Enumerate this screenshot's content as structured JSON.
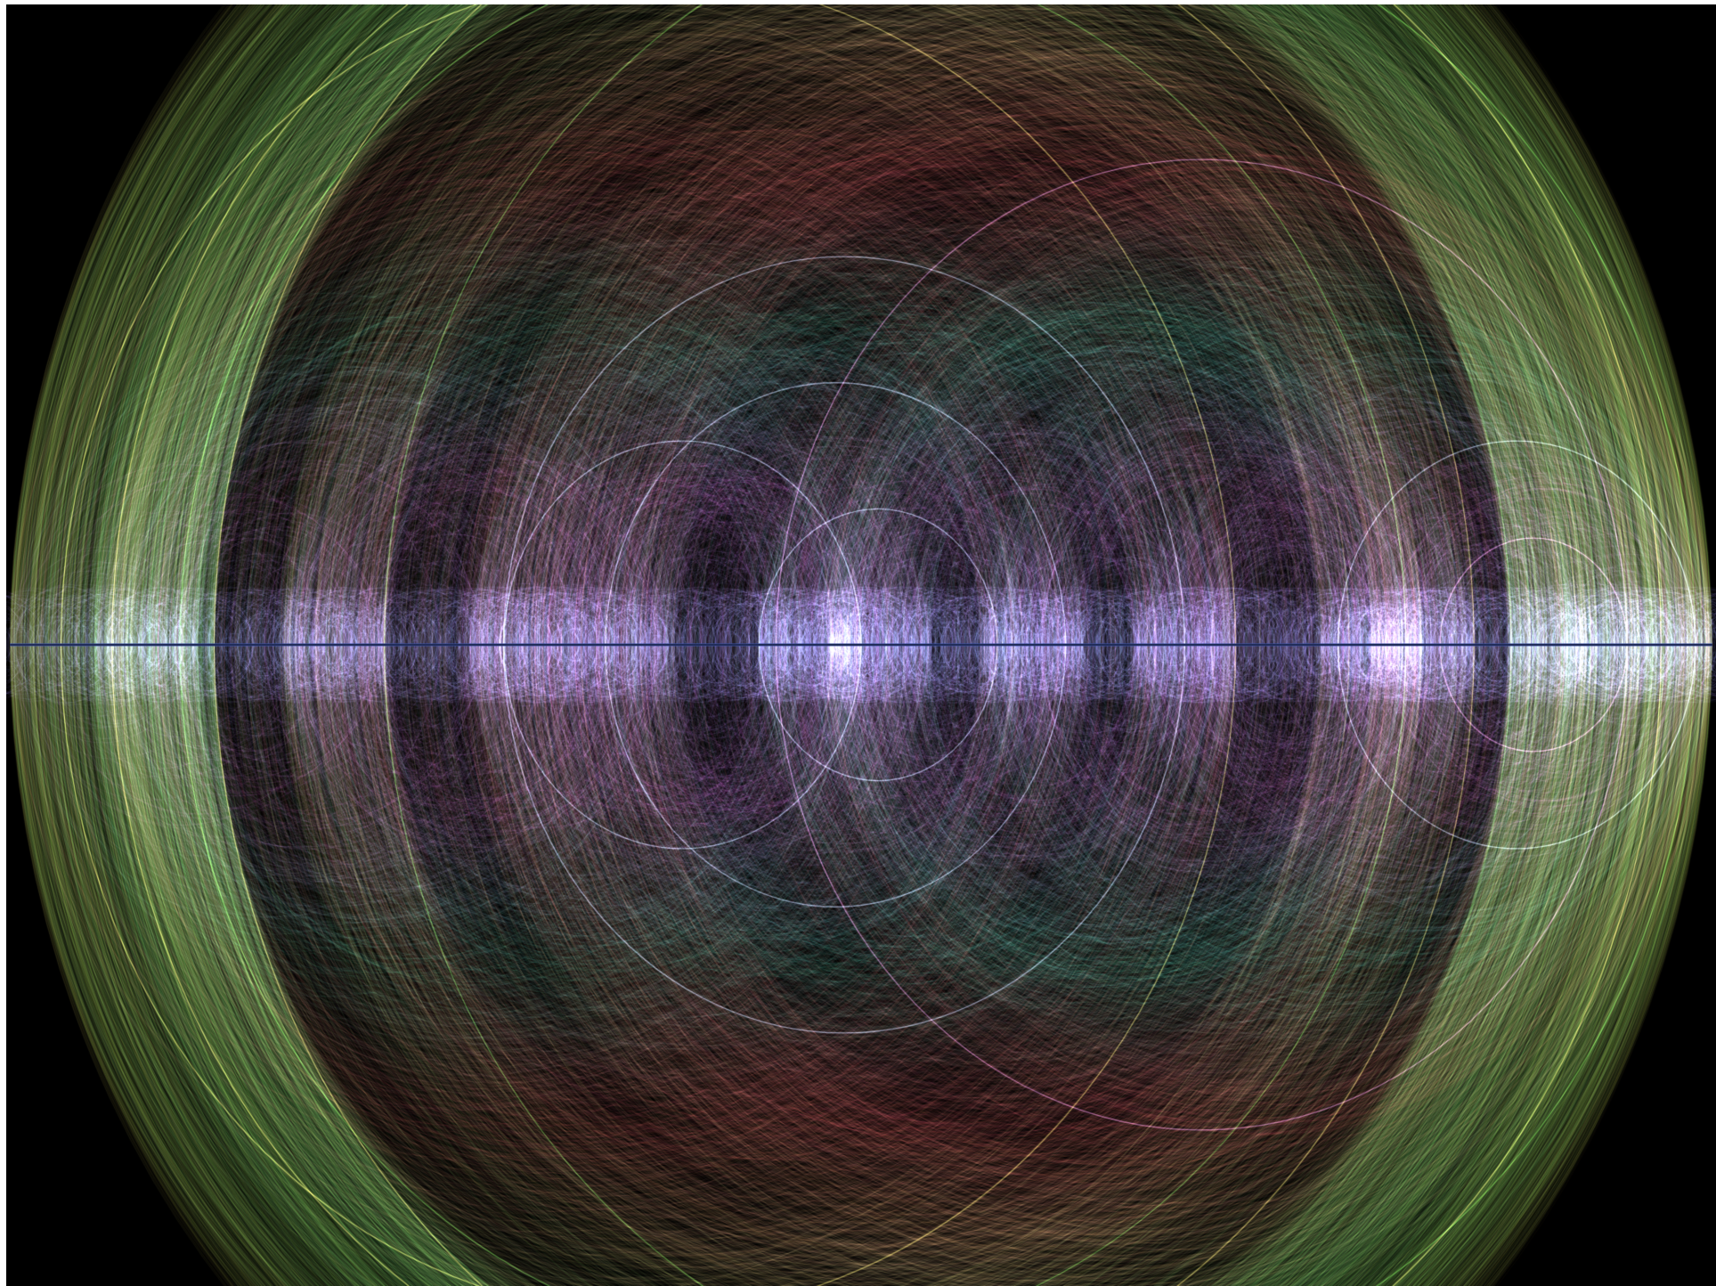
{
  "diagram": {
    "type": "arc-diagram",
    "background": "#000000",
    "page_background": "#ffffff",
    "axis_color": "#3a4f9e",
    "mirrored": true,
    "color_bands": [
      {
        "name": "blue",
        "color": "#6f8fe0"
      },
      {
        "name": "magenta",
        "color": "#c04cc8"
      },
      {
        "name": "teal",
        "color": "#2f9d86"
      },
      {
        "name": "red",
        "color": "#a3333f"
      },
      {
        "name": "tan",
        "color": "#b59a63"
      },
      {
        "name": "green",
        "color": "#3d8a3a"
      },
      {
        "name": "olive",
        "color": "#8c8a2e"
      }
    ],
    "highlight_colors": [
      "#b7c6ef",
      "#d8d06a",
      "#66c04a",
      "#d98ad8"
    ],
    "labels": []
  }
}
